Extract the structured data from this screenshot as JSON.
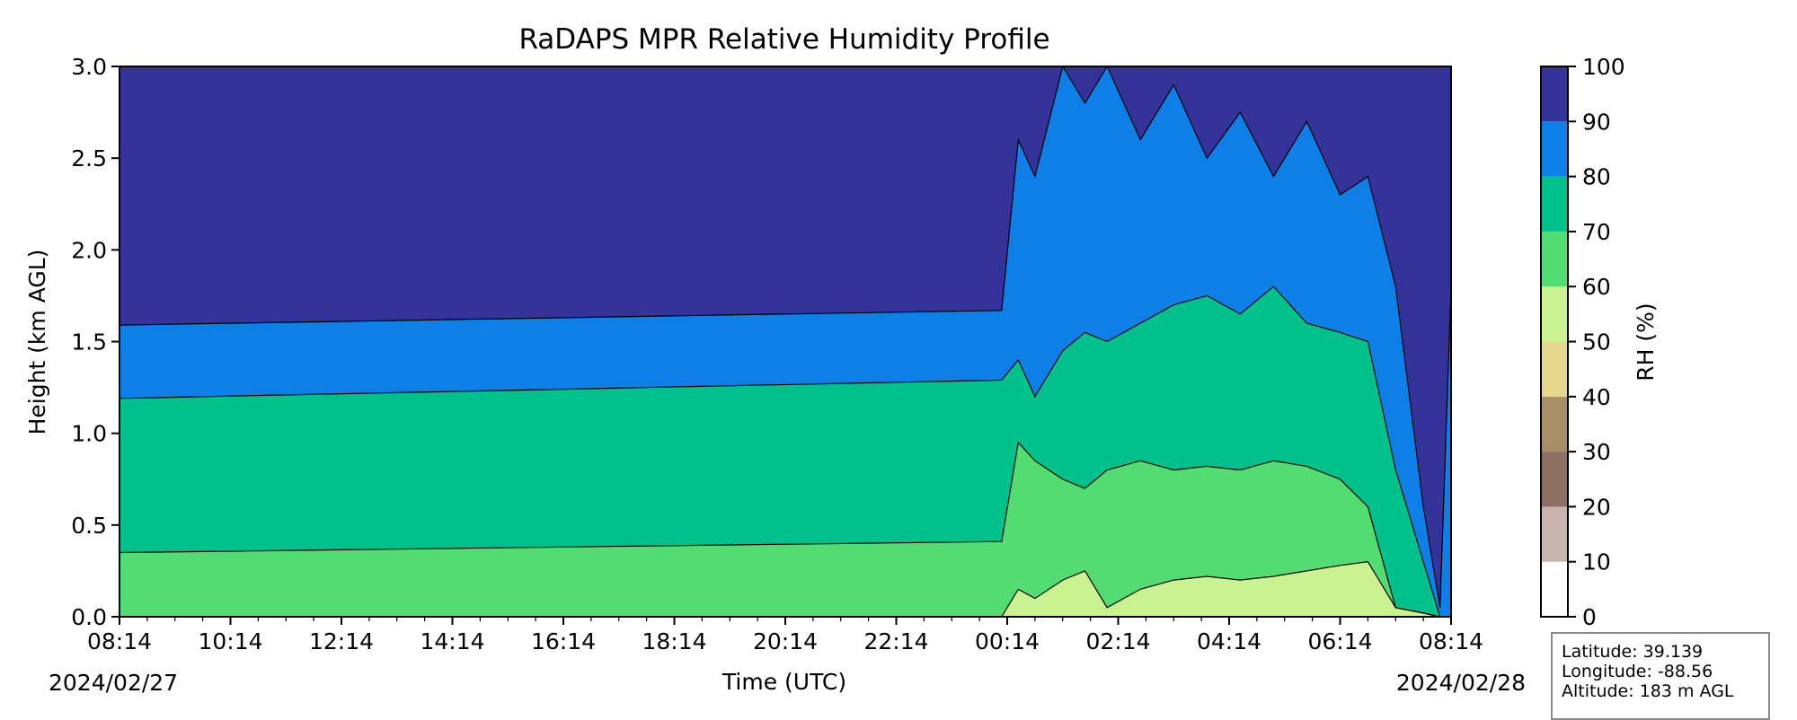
{
  "chart_data": {
    "type": "area",
    "subtype": "filled-contour",
    "title": "RaDAPS MPR Relative Humidity Profile",
    "xlabel": "Time (UTC)",
    "ylabel": "Height (km AGL)",
    "ylim": [
      0.0,
      3.0
    ],
    "x_ticks": [
      "08:14",
      "10:14",
      "12:14",
      "14:14",
      "16:14",
      "18:14",
      "20:14",
      "22:14",
      "00:14",
      "02:14",
      "04:14",
      "06:14",
      "08:14"
    ],
    "x_tick_hours": [
      0,
      2,
      4,
      6,
      8,
      10,
      12,
      14,
      16,
      18,
      20,
      22,
      24
    ],
    "x_date_start": "2024/02/27",
    "x_date_end": "2024/02/28",
    "y_ticks": [
      "0.0",
      "0.5",
      "1.0",
      "1.5",
      "2.0",
      "2.5",
      "3.0"
    ],
    "y_tick_values": [
      0.0,
      0.5,
      1.0,
      1.5,
      2.0,
      2.5,
      3.0
    ],
    "grid": false,
    "colorbar": {
      "label": "RH (%)",
      "ticks": [
        "0",
        "10",
        "20",
        "30",
        "40",
        "50",
        "60",
        "70",
        "80",
        "90",
        "100"
      ],
      "levels": [
        {
          "min": 0,
          "max": 10,
          "color": "#ffffff"
        },
        {
          "min": 10,
          "max": 20,
          "color": "#c7b5ad"
        },
        {
          "min": 20,
          "max": 30,
          "color": "#8e6f63"
        },
        {
          "min": 30,
          "max": 40,
          "color": "#a88e66"
        },
        {
          "min": 40,
          "max": 50,
          "color": "#e2d78b"
        },
        {
          "min": 50,
          "max": 60,
          "color": "#c9f38f"
        },
        {
          "min": 60,
          "max": 70,
          "color": "#52dc72"
        },
        {
          "min": 70,
          "max": 80,
          "color": "#00c08b"
        },
        {
          "min": 80,
          "max": 90,
          "color": "#0d7fe6"
        },
        {
          "min": 90,
          "max": 100,
          "color": "#34339a"
        }
      ]
    },
    "contour_boundaries_km": [
      {
        "time_h": 0.0,
        "rh60": 0.0,
        "rh70": 0.35,
        "rh80": 1.19,
        "rh90": 1.59
      },
      {
        "time_h": 15.9,
        "rh60": 0.0,
        "rh70": 0.41,
        "rh80": 1.29,
        "rh90": 1.67
      },
      {
        "time_h": 16.2,
        "rh60": 0.15,
        "rh70": 0.95,
        "rh80": 1.4,
        "rh90": 2.6
      },
      {
        "time_h": 16.5,
        "rh60": 0.1,
        "rh70": 0.85,
        "rh80": 1.2,
        "rh90": 2.4
      },
      {
        "time_h": 17.0,
        "rh60": 0.2,
        "rh70": 0.75,
        "rh80": 1.45,
        "rh90": 3.0
      },
      {
        "time_h": 17.4,
        "rh60": 0.25,
        "rh70": 0.7,
        "rh80": 1.55,
        "rh90": 2.8
      },
      {
        "time_h": 17.8,
        "rh60": 0.05,
        "rh70": 0.8,
        "rh80": 1.5,
        "rh90": 3.0
      },
      {
        "time_h": 18.4,
        "rh60": 0.15,
        "rh70": 0.85,
        "rh80": 1.6,
        "rh90": 2.6
      },
      {
        "time_h": 19.0,
        "rh60": 0.2,
        "rh70": 0.8,
        "rh80": 1.7,
        "rh90": 2.9
      },
      {
        "time_h": 19.6,
        "rh60": 0.22,
        "rh70": 0.82,
        "rh80": 1.75,
        "rh90": 2.5
      },
      {
        "time_h": 20.2,
        "rh60": 0.2,
        "rh70": 0.8,
        "rh80": 1.65,
        "rh90": 2.75
      },
      {
        "time_h": 20.8,
        "rh60": 0.22,
        "rh70": 0.85,
        "rh80": 1.8,
        "rh90": 2.4
      },
      {
        "time_h": 21.4,
        "rh60": 0.25,
        "rh70": 0.82,
        "rh80": 1.6,
        "rh90": 2.7
      },
      {
        "time_h": 22.0,
        "rh60": 0.28,
        "rh70": 0.75,
        "rh80": 1.55,
        "rh90": 2.3
      },
      {
        "time_h": 22.5,
        "rh60": 0.3,
        "rh70": 0.6,
        "rh80": 1.5,
        "rh90": 2.4
      },
      {
        "time_h": 23.0,
        "rh60": 0.05,
        "rh70": 0.05,
        "rh80": 0.8,
        "rh90": 1.8
      },
      {
        "time_h": 23.5,
        "rh60": 0.02,
        "rh70": 0.02,
        "rh80": 0.3,
        "rh90": 0.6
      },
      {
        "time_h": 23.8,
        "rh60": 0.0,
        "rh70": 0.0,
        "rh80": 0.0,
        "rh90": 0.05
      },
      {
        "time_h": 24.0,
        "rh60": 0.0,
        "rh70": 0.0,
        "rh80": 0.0,
        "rh90": 1.8
      }
    ]
  },
  "info": {
    "latitude": "Latitude: 39.139",
    "longitude": "Longitude: -88.56",
    "altitude": "Altitude: 183 m AGL"
  }
}
